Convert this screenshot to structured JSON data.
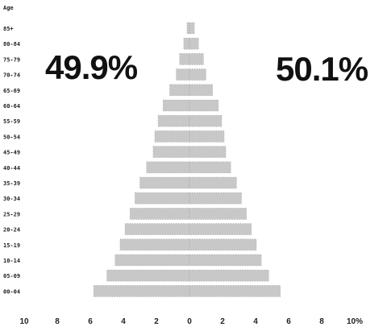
{
  "chart_data": {
    "type": "bar",
    "orientation": "horizontal-population-pyramid",
    "ylabel": "Age",
    "age_groups": [
      "85+",
      "80-84",
      "75-79",
      "70-74",
      "65-69",
      "60-64",
      "55-59",
      "50-54",
      "45-49",
      "40-44",
      "35-39",
      "30-34",
      "25-29",
      "20-24",
      "15-19",
      "10-14",
      "05-09",
      "00-04"
    ],
    "series": [
      {
        "side": "left",
        "percentage_label": "49.9%",
        "values": [
          0.15,
          0.35,
          0.6,
          0.8,
          1.2,
          1.6,
          1.9,
          2.1,
          2.2,
          2.6,
          3.0,
          3.3,
          3.6,
          3.9,
          4.2,
          4.5,
          5.0,
          5.8
        ]
      },
      {
        "side": "right",
        "percentage_label": "50.1%",
        "values": [
          0.3,
          0.55,
          0.85,
          1.0,
          1.4,
          1.75,
          1.95,
          2.1,
          2.2,
          2.5,
          2.85,
          3.15,
          3.45,
          3.75,
          4.05,
          4.35,
          4.8,
          5.5
        ]
      }
    ],
    "x_ticks": [
      "10",
      "8",
      "6",
      "4",
      "2",
      "0",
      "2",
      "4",
      "6",
      "8",
      "10%"
    ],
    "xlim": [
      -10,
      10
    ],
    "grid": false,
    "bar_color": "#c8c8c8"
  }
}
